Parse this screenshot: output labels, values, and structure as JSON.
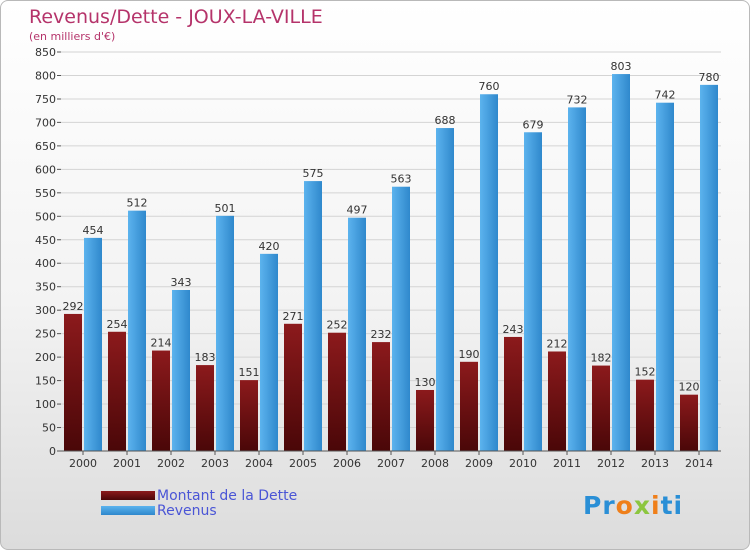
{
  "title": "Revenus/Dette - JOUX-LA-VILLE",
  "subtitle": "(en milliers d'€)",
  "logo": "Proxiti",
  "colors": {
    "dette": "#7a1214",
    "revenus": "#3f9fe0",
    "title": "#b5336a",
    "legend_text": "#4a55d6"
  },
  "chart_data": {
    "type": "bar",
    "categories": [
      "2000",
      "2001",
      "2002",
      "2003",
      "2004",
      "2005",
      "2006",
      "2007",
      "2008",
      "2009",
      "2010",
      "2011",
      "2012",
      "2013",
      "2014"
    ],
    "series": [
      {
        "name": "Montant de la Dette",
        "values": [
          292,
          254,
          214,
          183,
          151,
          271,
          252,
          232,
          130,
          190,
          243,
          212,
          182,
          152,
          120
        ]
      },
      {
        "name": "Revenus",
        "values": [
          454,
          512,
          343,
          501,
          420,
          575,
          497,
          563,
          688,
          760,
          679,
          732,
          803,
          742,
          780
        ]
      }
    ],
    "ylim": [
      0,
      850
    ],
    "yticks": [
      0,
      50,
      100,
      150,
      200,
      250,
      300,
      350,
      400,
      450,
      500,
      550,
      600,
      650,
      700,
      750,
      800,
      850
    ],
    "grid": true,
    "legend_position": "bottom-left"
  }
}
